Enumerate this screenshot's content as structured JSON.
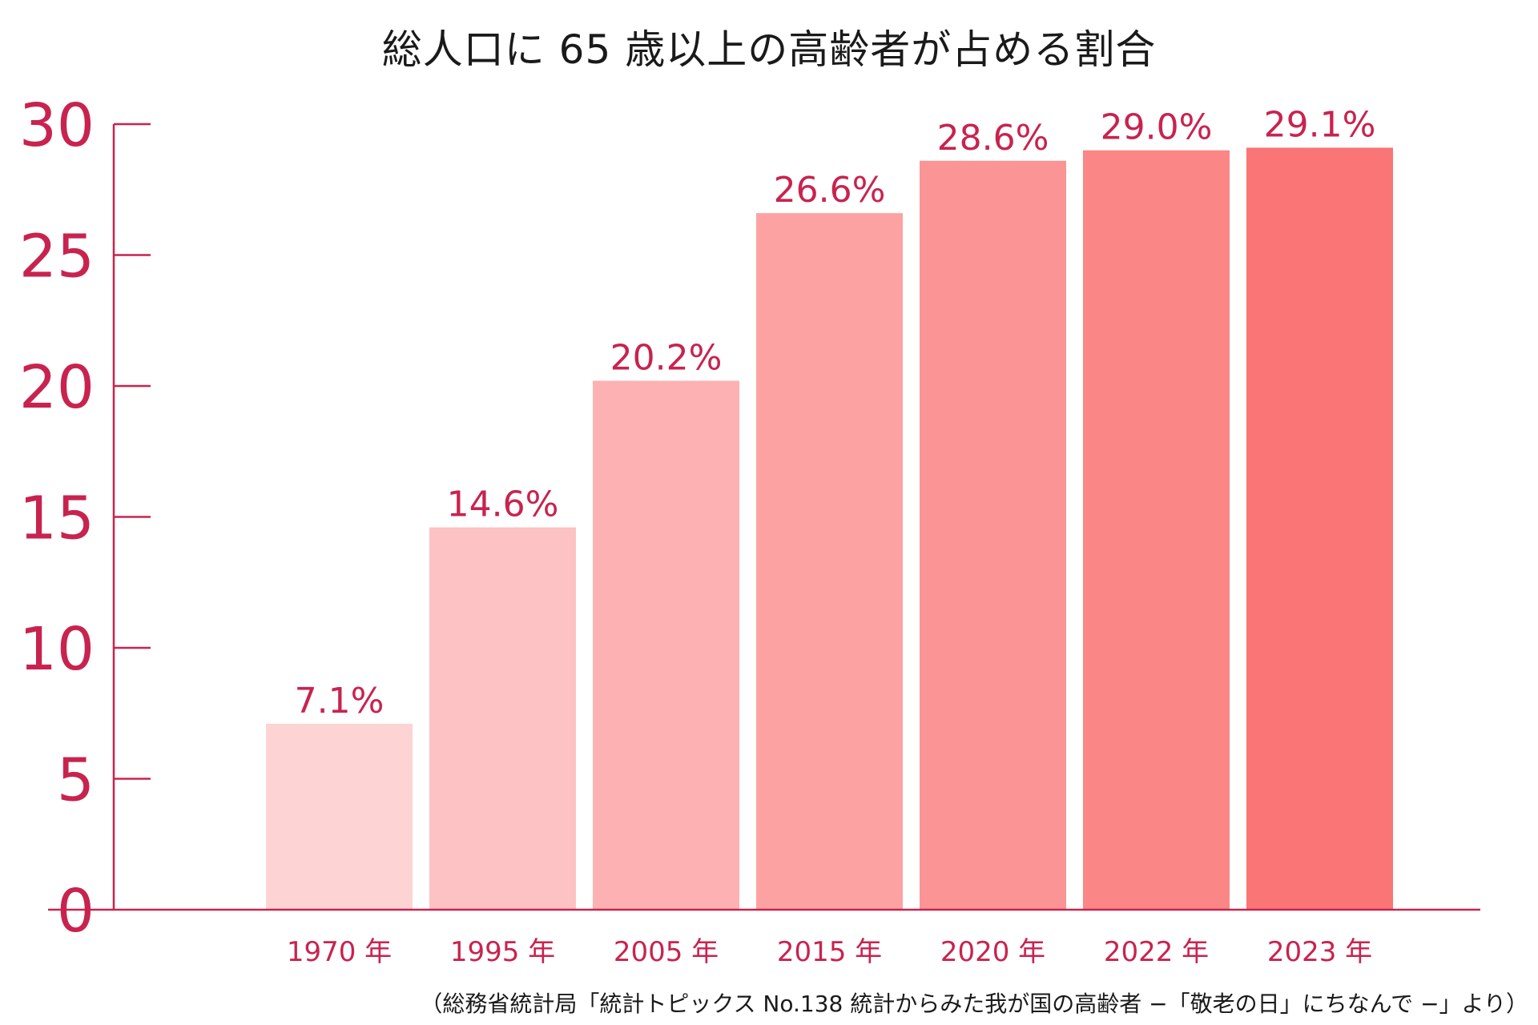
{
  "chart_data": {
    "type": "bar",
    "title": "総人口に 65 歳以上の高齢者が占める割合",
    "categories": [
      "1970 年",
      "1995 年",
      "2005 年",
      "2015 年",
      "2020 年",
      "2022 年",
      "2023 年"
    ],
    "values": [
      7.1,
      14.6,
      20.2,
      26.6,
      28.6,
      29.0,
      29.1
    ],
    "data_labels": [
      "7.1%",
      "14.6%",
      "20.2%",
      "26.6%",
      "28.6%",
      "29.0%",
      "29.1%"
    ],
    "bar_colors": [
      "#fdd3d3",
      "#fdc2c3",
      "#fdb1b2",
      "#fca2a2",
      "#fb9494",
      "#fb8686",
      "#fa7576"
    ],
    "axis_color": "#c8234f",
    "yticks": [
      0,
      5,
      10,
      15,
      20,
      25,
      30
    ],
    "ylim": [
      0,
      30
    ],
    "xlabel": "",
    "ylabel": "",
    "grid": false,
    "legend": "none"
  },
  "source_note": "（総務省統計局「統計トピックス No.138 統計からみた我が国の高齢者 −「敬老の日」にちなんで −」より）"
}
